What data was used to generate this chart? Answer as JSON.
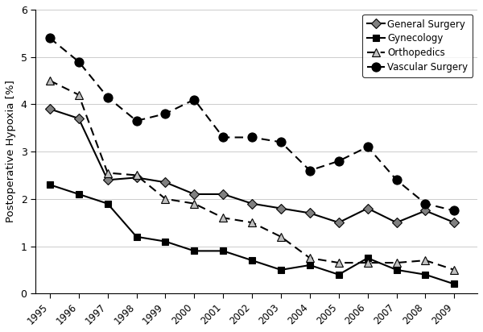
{
  "years": [
    1995,
    1996,
    1997,
    1998,
    1999,
    2000,
    2001,
    2002,
    2003,
    2004,
    2005,
    2006,
    2007,
    2008,
    2009
  ],
  "general_surgery": [
    3.9,
    3.7,
    2.4,
    2.45,
    2.35,
    2.1,
    2.1,
    1.9,
    1.8,
    1.7,
    1.5,
    1.8,
    1.5,
    1.75,
    1.5
  ],
  "gynecology": [
    2.3,
    2.1,
    1.9,
    1.2,
    1.1,
    0.9,
    0.9,
    0.7,
    0.5,
    0.6,
    0.4,
    0.75,
    0.5,
    0.4,
    0.2
  ],
  "orthopedics": [
    4.5,
    4.2,
    2.55,
    2.5,
    2.0,
    1.9,
    1.6,
    1.5,
    1.2,
    0.75,
    0.65,
    0.65,
    0.65,
    0.7,
    0.5
  ],
  "vascular_surgery": [
    5.4,
    4.9,
    4.15,
    3.65,
    3.8,
    4.1,
    3.3,
    3.3,
    3.2,
    2.6,
    2.8,
    3.1,
    2.4,
    1.9,
    1.75
  ],
  "ylabel": "Postoperative Hypoxia [%]",
  "ylim": [
    0,
    6
  ],
  "xlim": [
    1994.5,
    2009.8
  ],
  "yticks": [
    0,
    1,
    2,
    3,
    4,
    5,
    6
  ],
  "legend_labels": [
    "General Surgery",
    "Gynecology",
    "Orthopedics",
    "Vascular Surgery"
  ],
  "background_color": "#ffffff"
}
